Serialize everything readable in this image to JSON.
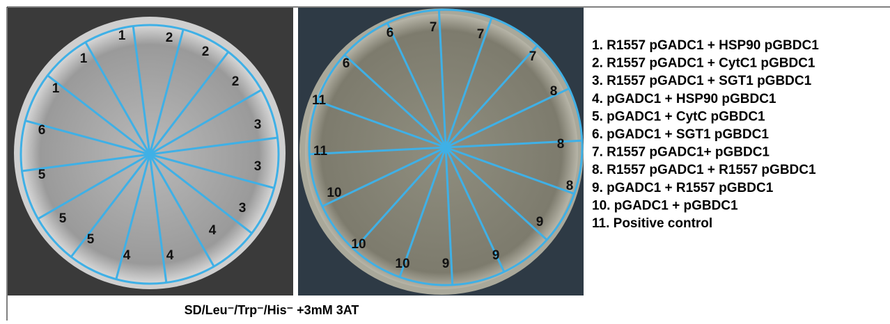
{
  "left_plate": {
    "labels": [
      "1",
      "1",
      "1",
      "2",
      "2",
      "2",
      "3",
      "3",
      "3",
      "4",
      "4",
      "4",
      "5",
      "5",
      "5",
      "6"
    ]
  },
  "right_plate": {
    "labels": [
      "6",
      "6",
      "7",
      "7",
      "7",
      "8",
      "8",
      "8",
      "9",
      "9",
      "9",
      "10",
      "10",
      "10",
      "11",
      "11"
    ]
  },
  "legend": [
    "1. R1557 pGADC1 + HSP90 pGBDC1",
    "2. R1557 pGADC1 + CytC1 pGBDC1",
    "3. R1557 pGADC1 + SGT1 pGBDC1",
    "4. pGADC1 + HSP90 pGBDC1",
    "5. pGADC1 + CytC pGBDC1",
    "6. pGADC1 + SGT1 pGBDC1",
    "7. R1557 pGADC1+ pGBDC1",
    "8. R1557 pGADC1 + R1557 pGBDC1",
    "9. pGADC1 + R1557 pGBDC1",
    "10. pGADC1 + pGBDC1",
    "11. Positive control"
  ],
  "caption": "SD/Leu⁻/Trp⁻/His⁻ +3mM 3AT"
}
